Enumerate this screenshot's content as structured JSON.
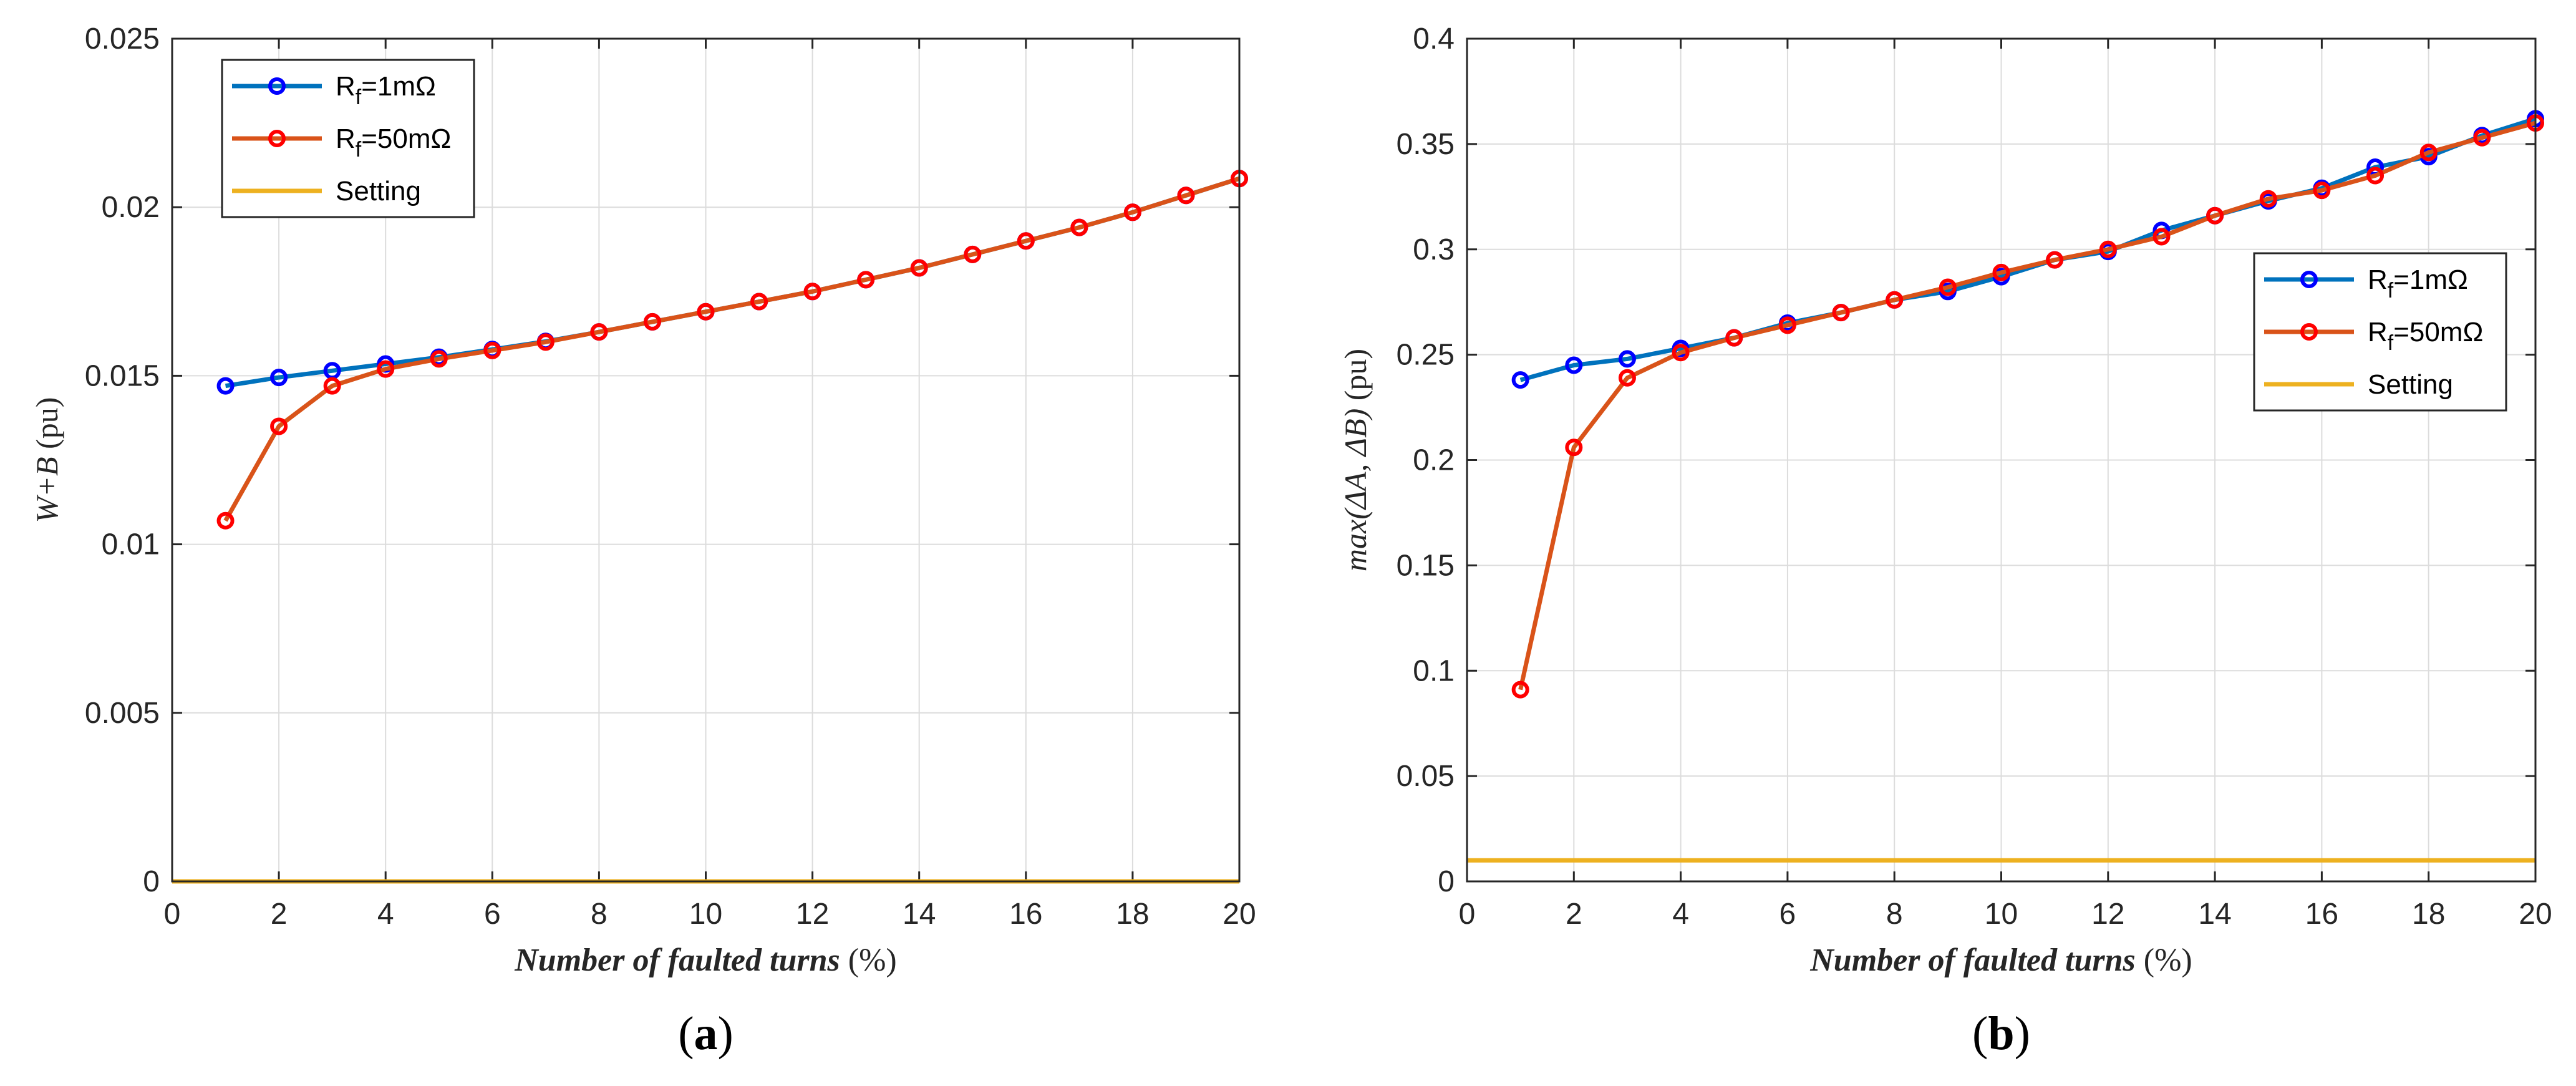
{
  "chart_data": [
    {
      "panel": "a",
      "panel_label": "(a)",
      "type": "line",
      "xlabel": "Number of faulted turns",
      "xlabel_unit": " (%)",
      "ylabel": "W+B",
      "ylabel_unit": " (pu)",
      "xlim": [
        0,
        20
      ],
      "ylim": [
        0,
        0.025
      ],
      "xticks": [
        0,
        2,
        4,
        6,
        8,
        10,
        12,
        14,
        16,
        18,
        20
      ],
      "yticks": [
        0,
        0.005,
        0.01,
        0.015,
        0.02,
        0.025
      ],
      "ytick_labels": [
        "0",
        "0.005",
        "0.01",
        "0.015",
        "0.02",
        "0.025"
      ],
      "legend_position": "top-left",
      "x": [
        1,
        2,
        3,
        4,
        5,
        6,
        7,
        8,
        9,
        10,
        11,
        12,
        13,
        14,
        15,
        16,
        17,
        18,
        19,
        20
      ],
      "series": [
        {
          "name": "Rf=1mΩ",
          "name_base": "R",
          "name_sub": "f",
          "name_rest": "=1mΩ",
          "color": "#0072BD",
          "marker_color": "#0000ff",
          "values": [
            0.0147,
            0.01495,
            0.01515,
            0.01535,
            0.01555,
            0.01578,
            0.01602,
            0.0163,
            0.0166,
            0.0169,
            0.0172,
            0.0175,
            0.01785,
            0.0182,
            0.0186,
            0.019,
            0.0194,
            0.01985,
            0.02035,
            0.02085
          ]
        },
        {
          "name": "Rf=50mΩ",
          "name_base": "R",
          "name_sub": "f",
          "name_rest": "=50mΩ",
          "color": "#D95319",
          "marker_color": "#ff0000",
          "values": [
            0.0107,
            0.0135,
            0.0147,
            0.0152,
            0.0155,
            0.01575,
            0.016,
            0.0163,
            0.0166,
            0.0169,
            0.0172,
            0.0175,
            0.01785,
            0.0182,
            0.0186,
            0.019,
            0.0194,
            0.01985,
            0.02035,
            0.02085
          ]
        },
        {
          "name": "Setting",
          "color": "#EDB120",
          "constant": 0
        }
      ]
    },
    {
      "panel": "b",
      "panel_label": "(b)",
      "type": "line",
      "xlabel": "Number of faulted turns",
      "xlabel_unit": " (%)",
      "ylabel": "max(ΔA, ΔB)",
      "ylabel_unit": " (pu)",
      "xlim": [
        0,
        20
      ],
      "ylim": [
        0,
        0.4
      ],
      "xticks": [
        0,
        2,
        4,
        6,
        8,
        10,
        12,
        14,
        16,
        18,
        20
      ],
      "yticks": [
        0,
        0.05,
        0.1,
        0.15,
        0.2,
        0.25,
        0.3,
        0.35,
        0.4
      ],
      "ytick_labels": [
        "0",
        "0.05",
        "0.1",
        "0.15",
        "0.2",
        "0.25",
        "0.3",
        "0.35",
        "0.4"
      ],
      "legend_position": "middle-right",
      "x": [
        1,
        2,
        3,
        4,
        5,
        6,
        7,
        8,
        9,
        10,
        11,
        12,
        13,
        14,
        15,
        16,
        17,
        18,
        19,
        20
      ],
      "series": [
        {
          "name": "Rf=1mΩ",
          "name_base": "R",
          "name_sub": "f",
          "name_rest": "=1mΩ",
          "color": "#0072BD",
          "marker_color": "#0000ff",
          "values": [
            0.238,
            0.245,
            0.248,
            0.253,
            0.258,
            0.265,
            0.27,
            0.276,
            0.28,
            0.287,
            0.295,
            0.299,
            0.309,
            0.316,
            0.323,
            0.329,
            0.339,
            0.344,
            0.354,
            0.362
          ]
        },
        {
          "name": "Rf=50mΩ",
          "name_base": "R",
          "name_sub": "f",
          "name_rest": "=50mΩ",
          "color": "#D95319",
          "marker_color": "#ff0000",
          "values": [
            0.091,
            0.206,
            0.239,
            0.251,
            0.258,
            0.264,
            0.27,
            0.276,
            0.282,
            0.289,
            0.295,
            0.3,
            0.306,
            0.316,
            0.324,
            0.328,
            0.335,
            0.346,
            0.353,
            0.36
          ]
        },
        {
          "name": "Setting",
          "color": "#EDB120",
          "constant": 0.01
        }
      ]
    }
  ]
}
